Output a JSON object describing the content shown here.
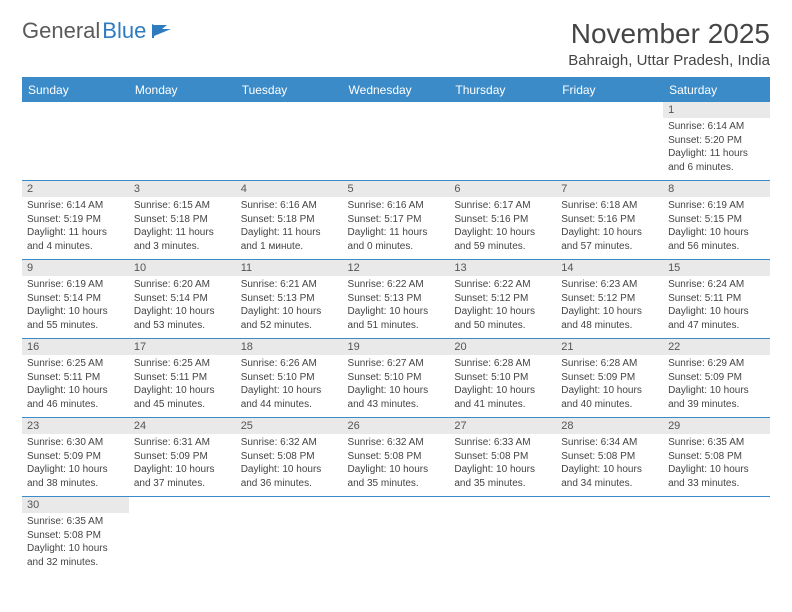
{
  "logo": {
    "text1": "General",
    "text2": "Blue"
  },
  "title": "November 2025",
  "location": "Bahraigh, Uttar Pradesh, India",
  "colors": {
    "header_bg": "#3b8bc8",
    "header_text": "#ffffff",
    "daynum_bg": "#e9e9e9",
    "cell_border": "#3b8bc8",
    "title_color": "#454545",
    "body_text": "#444444"
  },
  "day_headers": [
    "Sunday",
    "Monday",
    "Tuesday",
    "Wednesday",
    "Thursday",
    "Friday",
    "Saturday"
  ],
  "weeks": [
    [
      {
        "n": "",
        "sr": "",
        "ss": "",
        "dl": ""
      },
      {
        "n": "",
        "sr": "",
        "ss": "",
        "dl": ""
      },
      {
        "n": "",
        "sr": "",
        "ss": "",
        "dl": ""
      },
      {
        "n": "",
        "sr": "",
        "ss": "",
        "dl": ""
      },
      {
        "n": "",
        "sr": "",
        "ss": "",
        "dl": ""
      },
      {
        "n": "",
        "sr": "",
        "ss": "",
        "dl": ""
      },
      {
        "n": "1",
        "sr": "Sunrise: 6:14 AM",
        "ss": "Sunset: 5:20 PM",
        "dl": "Daylight: 11 hours and 6 minutes."
      }
    ],
    [
      {
        "n": "2",
        "sr": "Sunrise: 6:14 AM",
        "ss": "Sunset: 5:19 PM",
        "dl": "Daylight: 11 hours and 4 minutes."
      },
      {
        "n": "3",
        "sr": "Sunrise: 6:15 AM",
        "ss": "Sunset: 5:18 PM",
        "dl": "Daylight: 11 hours and 3 minutes."
      },
      {
        "n": "4",
        "sr": "Sunrise: 6:16 AM",
        "ss": "Sunset: 5:18 PM",
        "dl": "Daylight: 11 hours and 1 минute."
      },
      {
        "n": "5",
        "sr": "Sunrise: 6:16 AM",
        "ss": "Sunset: 5:17 PM",
        "dl": "Daylight: 11 hours and 0 minutes."
      },
      {
        "n": "6",
        "sr": "Sunrise: 6:17 AM",
        "ss": "Sunset: 5:16 PM",
        "dl": "Daylight: 10 hours and 59 minutes."
      },
      {
        "n": "7",
        "sr": "Sunrise: 6:18 AM",
        "ss": "Sunset: 5:16 PM",
        "dl": "Daylight: 10 hours and 57 minutes."
      },
      {
        "n": "8",
        "sr": "Sunrise: 6:19 AM",
        "ss": "Sunset: 5:15 PM",
        "dl": "Daylight: 10 hours and 56 minutes."
      }
    ],
    [
      {
        "n": "9",
        "sr": "Sunrise: 6:19 AM",
        "ss": "Sunset: 5:14 PM",
        "dl": "Daylight: 10 hours and 55 minutes."
      },
      {
        "n": "10",
        "sr": "Sunrise: 6:20 AM",
        "ss": "Sunset: 5:14 PM",
        "dl": "Daylight: 10 hours and 53 minutes."
      },
      {
        "n": "11",
        "sr": "Sunrise: 6:21 AM",
        "ss": "Sunset: 5:13 PM",
        "dl": "Daylight: 10 hours and 52 minutes."
      },
      {
        "n": "12",
        "sr": "Sunrise: 6:22 AM",
        "ss": "Sunset: 5:13 PM",
        "dl": "Daylight: 10 hours and 51 minutes."
      },
      {
        "n": "13",
        "sr": "Sunrise: 6:22 AM",
        "ss": "Sunset: 5:12 PM",
        "dl": "Daylight: 10 hours and 50 minutes."
      },
      {
        "n": "14",
        "sr": "Sunrise: 6:23 AM",
        "ss": "Sunset: 5:12 PM",
        "dl": "Daylight: 10 hours and 48 minutes."
      },
      {
        "n": "15",
        "sr": "Sunrise: 6:24 AM",
        "ss": "Sunset: 5:11 PM",
        "dl": "Daylight: 10 hours and 47 minutes."
      }
    ],
    [
      {
        "n": "16",
        "sr": "Sunrise: 6:25 AM",
        "ss": "Sunset: 5:11 PM",
        "dl": "Daylight: 10 hours and 46 minutes."
      },
      {
        "n": "17",
        "sr": "Sunrise: 6:25 AM",
        "ss": "Sunset: 5:11 PM",
        "dl": "Daylight: 10 hours and 45 minutes."
      },
      {
        "n": "18",
        "sr": "Sunrise: 6:26 AM",
        "ss": "Sunset: 5:10 PM",
        "dl": "Daylight: 10 hours and 44 minutes."
      },
      {
        "n": "19",
        "sr": "Sunrise: 6:27 AM",
        "ss": "Sunset: 5:10 PM",
        "dl": "Daylight: 10 hours and 43 minutes."
      },
      {
        "n": "20",
        "sr": "Sunrise: 6:28 AM",
        "ss": "Sunset: 5:10 PM",
        "dl": "Daylight: 10 hours and 41 minutes."
      },
      {
        "n": "21",
        "sr": "Sunrise: 6:28 AM",
        "ss": "Sunset: 5:09 PM",
        "dl": "Daylight: 10 hours and 40 minutes."
      },
      {
        "n": "22",
        "sr": "Sunrise: 6:29 AM",
        "ss": "Sunset: 5:09 PM",
        "dl": "Daylight: 10 hours and 39 minutes."
      }
    ],
    [
      {
        "n": "23",
        "sr": "Sunrise: 6:30 AM",
        "ss": "Sunset: 5:09 PM",
        "dl": "Daylight: 10 hours and 38 minutes."
      },
      {
        "n": "24",
        "sr": "Sunrise: 6:31 AM",
        "ss": "Sunset: 5:09 PM",
        "dl": "Daylight: 10 hours and 37 minutes."
      },
      {
        "n": "25",
        "sr": "Sunrise: 6:32 AM",
        "ss": "Sunset: 5:08 PM",
        "dl": "Daylight: 10 hours and 36 minutes."
      },
      {
        "n": "26",
        "sr": "Sunrise: 6:32 AM",
        "ss": "Sunset: 5:08 PM",
        "dl": "Daylight: 10 hours and 35 minutes."
      },
      {
        "n": "27",
        "sr": "Sunrise: 6:33 AM",
        "ss": "Sunset: 5:08 PM",
        "dl": "Daylight: 10 hours and 35 minutes."
      },
      {
        "n": "28",
        "sr": "Sunrise: 6:34 AM",
        "ss": "Sunset: 5:08 PM",
        "dl": "Daylight: 10 hours and 34 minutes."
      },
      {
        "n": "29",
        "sr": "Sunrise: 6:35 AM",
        "ss": "Sunset: 5:08 PM",
        "dl": "Daylight: 10 hours and 33 minutes."
      }
    ],
    [
      {
        "n": "30",
        "sr": "Sunrise: 6:35 AM",
        "ss": "Sunset: 5:08 PM",
        "dl": "Daylight: 10 hours and 32 minutes."
      },
      {
        "n": "",
        "sr": "",
        "ss": "",
        "dl": ""
      },
      {
        "n": "",
        "sr": "",
        "ss": "",
        "dl": ""
      },
      {
        "n": "",
        "sr": "",
        "ss": "",
        "dl": ""
      },
      {
        "n": "",
        "sr": "",
        "ss": "",
        "dl": ""
      },
      {
        "n": "",
        "sr": "",
        "ss": "",
        "dl": ""
      },
      {
        "n": "",
        "sr": "",
        "ss": "",
        "dl": ""
      }
    ]
  ]
}
